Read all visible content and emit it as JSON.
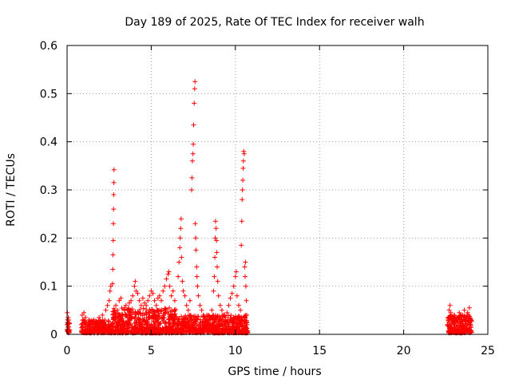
{
  "chart_data": {
    "type": "scatter",
    "title": "Day 189 of 2025, Rate Of TEC Index for receiver walh",
    "xlabel": "GPS time / hours",
    "ylabel": "ROTI / TECUs",
    "xlim": [
      0,
      25
    ],
    "ylim": [
      0,
      0.6
    ],
    "xticks": [
      0,
      5,
      10,
      15,
      20,
      25
    ],
    "yticks": [
      0,
      0.1,
      0.2,
      0.3,
      0.4,
      0.5,
      0.6
    ],
    "xtick_labels": [
      "0",
      "5",
      "10",
      "15",
      "20",
      "25"
    ],
    "ytick_labels": [
      "0",
      "0.1",
      "0.2",
      "0.3",
      "0.4",
      "0.5",
      "0.6"
    ],
    "grid": true,
    "marker": "+",
    "color": "#ff0000",
    "series": [
      {
        "name": "ROTI",
        "points": [
          [
            0.0,
            0.01
          ],
          [
            0.0,
            0.02
          ],
          [
            0.02,
            0.045
          ],
          [
            0.03,
            0.03
          ],
          [
            0.05,
            0.015
          ],
          [
            0.07,
            0.035
          ],
          [
            0.1,
            0.01
          ],
          [
            0.85,
            0.02
          ],
          [
            0.9,
            0.04
          ],
          [
            0.95,
            0.03
          ],
          [
            1.0,
            0.045
          ],
          [
            1.05,
            0.02
          ],
          [
            1.1,
            0.035
          ],
          [
            1.2,
            0.015
          ],
          [
            1.3,
            0.03
          ],
          [
            1.4,
            0.025
          ],
          [
            1.5,
            0.01
          ],
          [
            1.6,
            0.03
          ],
          [
            1.7,
            0.02
          ],
          [
            1.8,
            0.015
          ],
          [
            1.9,
            0.035
          ],
          [
            2.0,
            0.02
          ],
          [
            2.1,
            0.04
          ],
          [
            2.2,
            0.025
          ],
          [
            2.3,
            0.05
          ],
          [
            2.4,
            0.06
          ],
          [
            2.5,
            0.07
          ],
          [
            2.55,
            0.09
          ],
          [
            2.6,
            0.1
          ],
          [
            2.7,
            0.105
          ],
          [
            2.72,
            0.135
          ],
          [
            2.73,
            0.165
          ],
          [
            2.74,
            0.195
          ],
          [
            2.75,
            0.23
          ],
          [
            2.76,
            0.26
          ],
          [
            2.77,
            0.29
          ],
          [
            2.78,
            0.315
          ],
          [
            2.79,
            0.342
          ],
          [
            2.85,
            0.04
          ],
          [
            2.9,
            0.06
          ],
          [
            3.0,
            0.05
          ],
          [
            3.1,
            0.07
          ],
          [
            3.2,
            0.075
          ],
          [
            3.3,
            0.04
          ],
          [
            3.4,
            0.055
          ],
          [
            3.5,
            0.06
          ],
          [
            3.6,
            0.05
          ],
          [
            3.7,
            0.065
          ],
          [
            3.8,
            0.07
          ],
          [
            3.9,
            0.08
          ],
          [
            4.0,
            0.1
          ],
          [
            4.05,
            0.11
          ],
          [
            4.1,
            0.09
          ],
          [
            4.2,
            0.085
          ],
          [
            4.3,
            0.07
          ],
          [
            4.4,
            0.06
          ],
          [
            4.5,
            0.075
          ],
          [
            4.6,
            0.065
          ],
          [
            4.7,
            0.06
          ],
          [
            4.8,
            0.07
          ],
          [
            4.9,
            0.08
          ],
          [
            5.0,
            0.09
          ],
          [
            5.1,
            0.085
          ],
          [
            5.2,
            0.07
          ],
          [
            5.3,
            0.06
          ],
          [
            5.4,
            0.075
          ],
          [
            5.5,
            0.08
          ],
          [
            5.6,
            0.07
          ],
          [
            5.7,
            0.09
          ],
          [
            5.8,
            0.1
          ],
          [
            5.9,
            0.115
          ],
          [
            6.0,
            0.125
          ],
          [
            6.05,
            0.13
          ],
          [
            6.1,
            0.1
          ],
          [
            6.2,
            0.08
          ],
          [
            6.3,
            0.09
          ],
          [
            6.4,
            0.07
          ],
          [
            6.6,
            0.12
          ],
          [
            6.65,
            0.15
          ],
          [
            6.7,
            0.18
          ],
          [
            6.72,
            0.2
          ],
          [
            6.75,
            0.22
          ],
          [
            6.78,
            0.24
          ],
          [
            6.8,
            0.16
          ],
          [
            6.85,
            0.11
          ],
          [
            6.9,
            0.09
          ],
          [
            7.0,
            0.08
          ],
          [
            7.1,
            0.06
          ],
          [
            7.2,
            0.05
          ],
          [
            7.3,
            0.07
          ],
          [
            7.4,
            0.3
          ],
          [
            7.42,
            0.325
          ],
          [
            7.45,
            0.36
          ],
          [
            7.48,
            0.375
          ],
          [
            7.5,
            0.395
          ],
          [
            7.52,
            0.435
          ],
          [
            7.55,
            0.48
          ],
          [
            7.58,
            0.51
          ],
          [
            7.6,
            0.525
          ],
          [
            7.62,
            0.23
          ],
          [
            7.64,
            0.2
          ],
          [
            7.66,
            0.175
          ],
          [
            7.7,
            0.14
          ],
          [
            7.72,
            0.12
          ],
          [
            7.75,
            0.1
          ],
          [
            7.8,
            0.08
          ],
          [
            7.9,
            0.06
          ],
          [
            8.0,
            0.05
          ],
          [
            8.1,
            0.04
          ],
          [
            8.2,
            0.035
          ],
          [
            8.3,
            0.04
          ],
          [
            8.4,
            0.03
          ],
          [
            8.5,
            0.035
          ],
          [
            8.6,
            0.05
          ],
          [
            8.7,
            0.09
          ],
          [
            8.75,
            0.12
          ],
          [
            8.78,
            0.16
          ],
          [
            8.8,
            0.2
          ],
          [
            8.82,
            0.235
          ],
          [
            8.85,
            0.22
          ],
          [
            8.88,
            0.195
          ],
          [
            8.9,
            0.17
          ],
          [
            8.92,
            0.14
          ],
          [
            8.95,
            0.11
          ],
          [
            9.0,
            0.08
          ],
          [
            9.1,
            0.06
          ],
          [
            9.2,
            0.05
          ],
          [
            9.3,
            0.04
          ],
          [
            9.4,
            0.03
          ],
          [
            9.5,
            0.045
          ],
          [
            9.6,
            0.06
          ],
          [
            9.7,
            0.075
          ],
          [
            9.8,
            0.085
          ],
          [
            9.9,
            0.1
          ],
          [
            10.0,
            0.12
          ],
          [
            10.05,
            0.13
          ],
          [
            10.1,
            0.08
          ],
          [
            10.2,
            0.06
          ],
          [
            10.3,
            0.05
          ],
          [
            10.35,
            0.185
          ],
          [
            10.38,
            0.235
          ],
          [
            10.4,
            0.28
          ],
          [
            10.42,
            0.3
          ],
          [
            10.44,
            0.32
          ],
          [
            10.46,
            0.345
          ],
          [
            10.48,
            0.36
          ],
          [
            10.5,
            0.38
          ],
          [
            10.52,
            0.375
          ],
          [
            10.55,
            0.14
          ],
          [
            10.58,
            0.12
          ],
          [
            10.6,
            0.15
          ],
          [
            10.62,
            0.1
          ],
          [
            10.65,
            0.07
          ],
          [
            10.68,
            0.04
          ],
          [
            10.7,
            0.02
          ],
          [
            22.6,
            0.02
          ],
          [
            22.65,
            0.035
          ],
          [
            22.7,
            0.05
          ],
          [
            22.75,
            0.06
          ],
          [
            22.8,
            0.045
          ],
          [
            22.9,
            0.03
          ],
          [
            23.0,
            0.04
          ],
          [
            23.1,
            0.025
          ],
          [
            23.2,
            0.035
          ],
          [
            23.3,
            0.045
          ],
          [
            23.4,
            0.03
          ],
          [
            23.5,
            0.04
          ],
          [
            23.6,
            0.05
          ],
          [
            23.7,
            0.035
          ],
          [
            23.8,
            0.045
          ],
          [
            23.9,
            0.055
          ],
          [
            24.0,
            0.03
          ],
          [
            24.0,
            0.015
          ]
        ],
        "bands": [
          {
            "x_start": 0.0,
            "x_end": 0.15,
            "y_min": 0.003,
            "y_max": 0.03,
            "count": 25
          },
          {
            "x_start": 0.85,
            "x_end": 2.6,
            "y_min": 0.003,
            "y_max": 0.03,
            "count": 220
          },
          {
            "x_start": 2.6,
            "x_end": 6.5,
            "y_min": 0.003,
            "y_max": 0.055,
            "count": 650
          },
          {
            "x_start": 6.5,
            "x_end": 10.75,
            "y_min": 0.003,
            "y_max": 0.04,
            "count": 600
          },
          {
            "x_start": 22.6,
            "x_end": 24.05,
            "y_min": 0.003,
            "y_max": 0.04,
            "count": 220
          }
        ]
      }
    ]
  }
}
